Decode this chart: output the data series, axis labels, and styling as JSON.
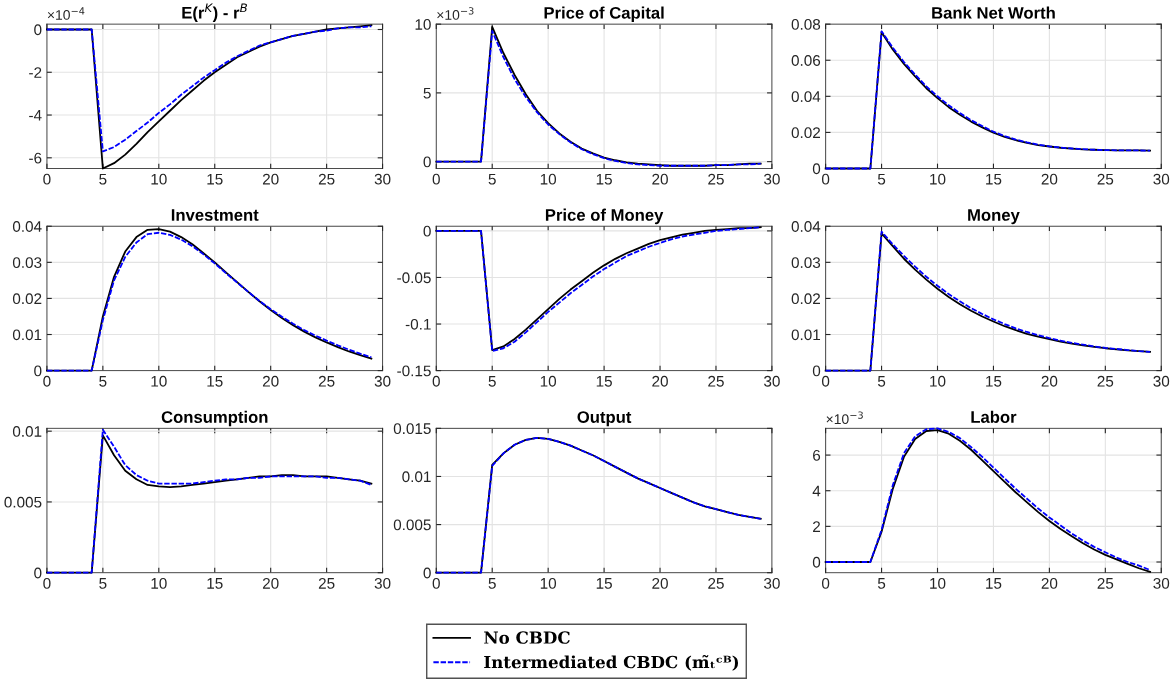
{
  "chart_data": [
    {
      "type": "line",
      "title": "E(r$^{K}$) - r$^{B}$",
      "annotations": [
        "×10$^{−4}$"
      ],
      "legend": "bottom",
      "grid": true,
      "x": [
        0,
        1,
        2,
        3,
        4,
        5,
        6,
        7,
        8,
        9,
        10,
        11,
        12,
        13,
        14,
        15,
        16,
        17,
        18,
        19,
        20,
        21,
        22,
        23,
        24,
        25,
        26,
        27,
        28,
        29
      ],
      "xlim": [
        0,
        30
      ],
      "xticks": [
        0,
        5,
        10,
        15,
        20,
        25,
        30
      ],
      "ylim": [
        -6.5,
        0.25
      ],
      "yticks": [
        -6,
        -4,
        -2,
        0
      ],
      "series": [
        {
          "name": "No CBDC",
          "color": "#000000",
          "line_style": "solid",
          "values": [
            0,
            0,
            0,
            0,
            0,
            -6.5,
            -6.25,
            -5.85,
            -5.35,
            -4.8,
            -4.3,
            -3.8,
            -3.3,
            -2.85,
            -2.4,
            -2.0,
            -1.65,
            -1.3,
            -1.05,
            -0.8,
            -0.6,
            -0.45,
            -0.3,
            -0.2,
            -0.1,
            0,
            0.05,
            0.1,
            0.15,
            0.2
          ]
        },
        {
          "name": "Intermediated CBDC (m̃ₜᶜᴮ)",
          "color": "#0000ff",
          "line_style": "dashed",
          "values": [
            0,
            0,
            0,
            0,
            0,
            -5.7,
            -5.5,
            -5.15,
            -4.75,
            -4.35,
            -3.9,
            -3.5,
            -3.05,
            -2.65,
            -2.25,
            -1.9,
            -1.55,
            -1.25,
            -1.0,
            -0.75,
            -0.6,
            -0.45,
            -0.3,
            -0.2,
            -0.1,
            -0.05,
            0.05,
            0.1,
            0.1,
            0.15
          ]
        }
      ]
    },
    {
      "type": "line",
      "title": "Price of Capital",
      "annotations": [
        "×10$^{−3}$"
      ],
      "grid": true,
      "x": [
        0,
        1,
        2,
        3,
        4,
        5,
        6,
        7,
        8,
        9,
        10,
        11,
        12,
        13,
        14,
        15,
        16,
        17,
        18,
        19,
        20,
        21,
        22,
        23,
        24,
        25,
        26,
        27,
        28,
        29
      ],
      "xlim": [
        0,
        30
      ],
      "xticks": [
        0,
        5,
        10,
        15,
        20,
        25,
        30
      ],
      "ylim": [
        -0.5,
        10
      ],
      "yticks": [
        0,
        5,
        10
      ],
      "series": [
        {
          "color": "#000000",
          "line_style": "solid",
          "values": [
            0,
            0,
            0,
            0,
            0,
            9.8,
            7.9,
            6.3,
            4.9,
            3.7,
            2.8,
            2.05,
            1.45,
            0.95,
            0.6,
            0.3,
            0.1,
            -0.05,
            -0.15,
            -0.2,
            -0.25,
            -0.3,
            -0.3,
            -0.3,
            -0.3,
            -0.25,
            -0.25,
            -0.2,
            -0.15,
            -0.15
          ]
        },
        {
          "color": "#0000ff",
          "line_style": "dashed",
          "values": [
            0,
            0,
            0,
            0,
            0,
            9.5,
            7.6,
            6.0,
            4.7,
            3.6,
            2.7,
            2.0,
            1.4,
            0.9,
            0.55,
            0.25,
            0.05,
            -0.1,
            -0.2,
            -0.25,
            -0.3,
            -0.3,
            -0.3,
            -0.3,
            -0.3,
            -0.25,
            -0.25,
            -0.2,
            -0.2,
            -0.15
          ]
        }
      ]
    },
    {
      "type": "line",
      "title": "Bank Net Worth",
      "grid": true,
      "x": [
        0,
        1,
        2,
        3,
        4,
        5,
        6,
        7,
        8,
        9,
        10,
        11,
        12,
        13,
        14,
        15,
        16,
        17,
        18,
        19,
        20,
        21,
        22,
        23,
        24,
        25,
        26,
        27,
        28,
        29
      ],
      "xlim": [
        0,
        30
      ],
      "xticks": [
        0,
        5,
        10,
        15,
        20,
        25,
        30
      ],
      "ylim": [
        0,
        0.08
      ],
      "yticks": [
        0,
        0.02,
        0.04,
        0.06,
        0.08
      ],
      "series": [
        {
          "color": "#000000",
          "line_style": "solid",
          "values": [
            0,
            0,
            0,
            0,
            0,
            0.0755,
            0.066,
            0.058,
            0.051,
            0.0445,
            0.039,
            0.034,
            0.0298,
            0.026,
            0.0228,
            0.0198,
            0.0175,
            0.0157,
            0.0142,
            0.013,
            0.0122,
            0.0115,
            0.011,
            0.0106,
            0.0104,
            0.0102,
            0.0101,
            0.01,
            0.01,
            0.0099
          ]
        },
        {
          "color": "#0000ff",
          "line_style": "dashed",
          "values": [
            0,
            0,
            0,
            0,
            0,
            0.076,
            0.067,
            0.059,
            0.052,
            0.0455,
            0.04,
            0.035,
            0.0307,
            0.0268,
            0.0235,
            0.0204,
            0.018,
            0.016,
            0.0145,
            0.0132,
            0.0123,
            0.0116,
            0.0111,
            0.0107,
            0.0104,
            0.0102,
            0.0101,
            0.01,
            0.01,
            0.0099
          ]
        }
      ]
    },
    {
      "type": "line",
      "title": "Investment",
      "grid": true,
      "x": [
        0,
        1,
        2,
        3,
        4,
        5,
        6,
        7,
        8,
        9,
        10,
        11,
        12,
        13,
        14,
        15,
        16,
        17,
        18,
        19,
        20,
        21,
        22,
        23,
        24,
        25,
        26,
        27,
        28,
        29
      ],
      "xlim": [
        0,
        30
      ],
      "xticks": [
        0,
        5,
        10,
        15,
        20,
        25,
        30
      ],
      "ylim": [
        0,
        0.04
      ],
      "yticks": [
        0,
        0.01,
        0.02,
        0.03,
        0.04
      ],
      "series": [
        {
          "color": "#000000",
          "line_style": "solid",
          "values": [
            0,
            0,
            0,
            0,
            0,
            0.015,
            0.026,
            0.033,
            0.037,
            0.039,
            0.0392,
            0.0385,
            0.037,
            0.035,
            0.0325,
            0.03,
            0.0272,
            0.0245,
            0.0218,
            0.0192,
            0.0168,
            0.0146,
            0.0126,
            0.0108,
            0.0092,
            0.0078,
            0.0065,
            0.0053,
            0.0043,
            0.0033
          ]
        },
        {
          "color": "#0000ff",
          "line_style": "dashed",
          "values": [
            0,
            0,
            0,
            0,
            0,
            0.014,
            0.025,
            0.0315,
            0.0355,
            0.0378,
            0.0382,
            0.0376,
            0.0363,
            0.0345,
            0.0322,
            0.0297,
            0.027,
            0.0244,
            0.0218,
            0.0193,
            0.017,
            0.0149,
            0.013,
            0.0112,
            0.0097,
            0.0083,
            0.007,
            0.0058,
            0.0047,
            0.0037
          ]
        }
      ]
    },
    {
      "type": "line",
      "title": "Price of Money",
      "grid": true,
      "x": [
        0,
        1,
        2,
        3,
        4,
        5,
        6,
        7,
        8,
        9,
        10,
        11,
        12,
        13,
        14,
        15,
        16,
        17,
        18,
        19,
        20,
        21,
        22,
        23,
        24,
        25,
        26,
        27,
        28,
        29
      ],
      "xlim": [
        0,
        30
      ],
      "xticks": [
        0,
        5,
        10,
        15,
        20,
        25,
        30
      ],
      "ylim": [
        -0.15,
        0.005
      ],
      "yticks": [
        -0.15,
        -0.1,
        -0.05,
        0
      ],
      "series": [
        {
          "color": "#000000",
          "line_style": "solid",
          "values": [
            0,
            0,
            0,
            0,
            0,
            -0.128,
            -0.124,
            -0.116,
            -0.106,
            -0.095,
            -0.084,
            -0.073,
            -0.063,
            -0.054,
            -0.045,
            -0.037,
            -0.03,
            -0.024,
            -0.019,
            -0.014,
            -0.01,
            -0.007,
            -0.004,
            -0.002,
            0,
            0.001,
            0.002,
            0.003,
            0.003,
            0.004
          ]
        },
        {
          "color": "#0000ff",
          "line_style": "dashed",
          "values": [
            0,
            0,
            0,
            0,
            0,
            -0.129,
            -0.126,
            -0.119,
            -0.109,
            -0.098,
            -0.087,
            -0.077,
            -0.067,
            -0.058,
            -0.049,
            -0.041,
            -0.034,
            -0.027,
            -0.022,
            -0.017,
            -0.013,
            -0.009,
            -0.006,
            -0.004,
            -0.002,
            0,
            0.001,
            0.002,
            0.003,
            0.004
          ]
        }
      ]
    },
    {
      "type": "line",
      "title": "Money",
      "grid": true,
      "x": [
        0,
        1,
        2,
        3,
        4,
        5,
        6,
        7,
        8,
        9,
        10,
        11,
        12,
        13,
        14,
        15,
        16,
        17,
        18,
        19,
        20,
        21,
        22,
        23,
        24,
        25,
        26,
        27,
        28,
        29
      ],
      "xlim": [
        0,
        30
      ],
      "xticks": [
        0,
        5,
        10,
        15,
        20,
        25,
        30
      ],
      "ylim": [
        0,
        0.04
      ],
      "yticks": [
        0,
        0.01,
        0.02,
        0.03,
        0.04
      ],
      "series": [
        {
          "color": "#000000",
          "line_style": "solid",
          "values": [
            0,
            0,
            0,
            0,
            0,
            0.038,
            0.0345,
            0.031,
            0.028,
            0.0252,
            0.0227,
            0.0204,
            0.0184,
            0.0166,
            0.015,
            0.0136,
            0.0123,
            0.0112,
            0.0102,
            0.0094,
            0.0087,
            0.008,
            0.0075,
            0.007,
            0.0066,
            0.0062,
            0.0059,
            0.0056,
            0.0054,
            0.0052
          ]
        },
        {
          "color": "#0000ff",
          "line_style": "dashed",
          "values": [
            0,
            0,
            0,
            0,
            0,
            0.0385,
            0.035,
            0.0318,
            0.0288,
            0.026,
            0.0235,
            0.0212,
            0.0192,
            0.0173,
            0.0157,
            0.0142,
            0.0129,
            0.0117,
            0.0107,
            0.0098,
            0.009,
            0.0083,
            0.0077,
            0.0072,
            0.0067,
            0.0063,
            0.006,
            0.0057,
            0.0054,
            0.0052
          ]
        }
      ]
    },
    {
      "type": "line",
      "title": "Consumption",
      "grid": true,
      "x": [
        0,
        1,
        2,
        3,
        4,
        5,
        6,
        7,
        8,
        9,
        10,
        11,
        12,
        13,
        14,
        15,
        16,
        17,
        18,
        19,
        20,
        21,
        22,
        23,
        24,
        25,
        26,
        27,
        28,
        29
      ],
      "xlim": [
        0,
        30
      ],
      "xticks": [
        0,
        5,
        10,
        15,
        20,
        25,
        30
      ],
      "ylim": [
        0,
        0.0102
      ],
      "yticks": [
        0,
        0.005,
        0.01
      ],
      "series": [
        {
          "color": "#000000",
          "line_style": "solid",
          "values": [
            0,
            0,
            0,
            0,
            0,
            0.0097,
            0.0083,
            0.0072,
            0.0066,
            0.0062,
            0.0061,
            0.00605,
            0.0061,
            0.0062,
            0.0063,
            0.0064,
            0.0065,
            0.0066,
            0.0067,
            0.0068,
            0.0068,
            0.0069,
            0.0069,
            0.0068,
            0.0068,
            0.0068,
            0.0067,
            0.0066,
            0.0065,
            0.0063
          ]
        },
        {
          "color": "#0000ff",
          "line_style": "dashed",
          "values": [
            0,
            0,
            0,
            0,
            0,
            0.0101,
            0.0089,
            0.0076,
            0.0069,
            0.0065,
            0.0063,
            0.0063,
            0.0063,
            0.0063,
            0.0064,
            0.0065,
            0.0066,
            0.0066,
            0.0067,
            0.0067,
            0.0068,
            0.0068,
            0.0068,
            0.0068,
            0.0068,
            0.0067,
            0.0067,
            0.0066,
            0.0065,
            0.0062
          ]
        }
      ]
    },
    {
      "type": "line",
      "title": "Output",
      "grid": true,
      "x": [
        0,
        1,
        2,
        3,
        4,
        5,
        6,
        7,
        8,
        9,
        10,
        11,
        12,
        13,
        14,
        15,
        16,
        17,
        18,
        19,
        20,
        21,
        22,
        23,
        24,
        25,
        26,
        27,
        28,
        29
      ],
      "xlim": [
        0,
        30
      ],
      "xticks": [
        0,
        5,
        10,
        15,
        20,
        25,
        30
      ],
      "ylim": [
        0,
        0.015
      ],
      "yticks": [
        0,
        0.005,
        0.01,
        0.015
      ],
      "series": [
        {
          "color": "#000000",
          "line_style": "solid",
          "values": [
            0,
            0,
            0,
            0,
            0,
            0.0112,
            0.0124,
            0.0133,
            0.0138,
            0.014,
            0.0139,
            0.0136,
            0.0132,
            0.0127,
            0.0122,
            0.0116,
            0.011,
            0.0104,
            0.0098,
            0.0093,
            0.0088,
            0.0083,
            0.0078,
            0.0073,
            0.0069,
            0.0066,
            0.0063,
            0.006,
            0.0058,
            0.0056
          ]
        },
        {
          "color": "#0000ff",
          "line_style": "dashed",
          "values": [
            0,
            0,
            0,
            0,
            0,
            0.0111,
            0.0124,
            0.0133,
            0.0138,
            0.014,
            0.0139,
            0.0136,
            0.0132,
            0.0127,
            0.0122,
            0.0116,
            0.011,
            0.0104,
            0.0098,
            0.0093,
            0.0088,
            0.0083,
            0.0078,
            0.0073,
            0.0069,
            0.0066,
            0.0063,
            0.006,
            0.0058,
            0.0056
          ]
        }
      ]
    },
    {
      "type": "line",
      "title": "Labor",
      "annotations": [
        "×10$^{−3}$"
      ],
      "grid": true,
      "x": [
        0,
        1,
        2,
        3,
        4,
        5,
        6,
        7,
        8,
        9,
        10,
        11,
        12,
        13,
        14,
        15,
        16,
        17,
        18,
        19,
        20,
        21,
        22,
        23,
        24,
        25,
        26,
        27,
        28,
        29
      ],
      "xlim": [
        0,
        30
      ],
      "xticks": [
        0,
        5,
        10,
        15,
        20,
        25,
        30
      ],
      "ylim": [
        -0.6,
        7.5
      ],
      "yticks": [
        0,
        2,
        4,
        6
      ],
      "series": [
        {
          "color": "#000000",
          "line_style": "solid",
          "values": [
            0,
            0,
            0,
            0,
            0,
            1.7,
            4.1,
            5.9,
            6.9,
            7.35,
            7.4,
            7.2,
            6.8,
            6.3,
            5.7,
            5.1,
            4.5,
            3.9,
            3.35,
            2.8,
            2.3,
            1.85,
            1.45,
            1.05,
            0.7,
            0.4,
            0.15,
            -0.1,
            -0.35,
            -0.55
          ]
        },
        {
          "color": "#0000ff",
          "line_style": "dashed",
          "values": [
            0,
            0,
            0,
            0,
            0,
            1.8,
            4.3,
            6.1,
            7.05,
            7.45,
            7.5,
            7.3,
            6.95,
            6.45,
            5.9,
            5.3,
            4.7,
            4.1,
            3.55,
            3.0,
            2.5,
            2.05,
            1.6,
            1.2,
            0.85,
            0.55,
            0.25,
            0,
            -0.2,
            -0.45
          ]
        }
      ]
    }
  ]
}
